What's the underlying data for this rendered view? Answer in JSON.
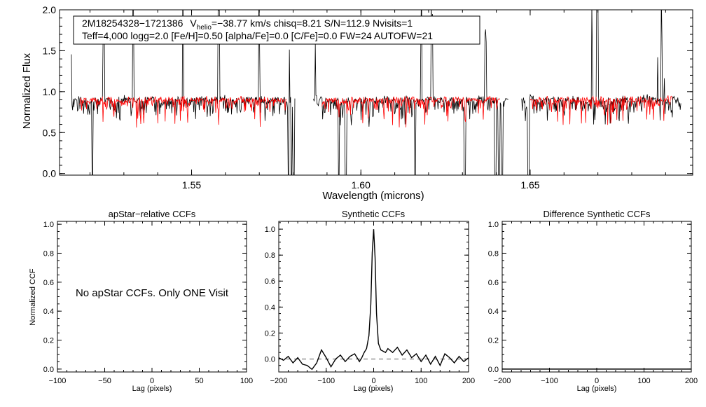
{
  "colors": {
    "observed": "#000000",
    "model": "#ff0000",
    "axis": "#000000",
    "zero_line": "#555555"
  },
  "spectrum": {
    "title_line1_star": "2M18254328−1721386",
    "title_line1_v": "V",
    "title_line1_sub": "helio",
    "title_line1_rest": "=−38.77 km/s  chisq=8.21  S/N=112.9  Nvisits=1",
    "title_line2": "Teff=4,000 logg=2.0 [Fe/H]=0.50 [alpha/Fe]=0.0 [C/Fe]=0.0 FW=24 AUTOFW=21"
  },
  "panels": {
    "no_ccf_message": "No apStar CCFs.  Only ONE Visit"
  },
  "chart_data": [
    {
      "type": "line",
      "id": "spectrum",
      "xlabel": "Wavelength (microns)",
      "ylabel": "Normalized Flux",
      "xlim": [
        1.511,
        1.698
      ],
      "ylim": [
        -0.02,
        2.0
      ],
      "xticks": [
        1.55,
        1.6,
        1.65
      ],
      "xtick_labels": [
        "1.55",
        "1.60",
        "1.65"
      ],
      "yticks": [
        0.0,
        0.5,
        1.0,
        1.5,
        2.0
      ],
      "ytick_labels": [
        "0.0",
        "0.5",
        "1.0",
        "1.5",
        "2.0"
      ],
      "chips": [
        [
          1.5145,
          1.5805
        ],
        [
          1.586,
          1.6435
        ],
        [
          1.6475,
          1.6945
        ]
      ],
      "continuum": 0.93,
      "series": [
        {
          "name": "observed spectrum",
          "color": "#000000"
        },
        {
          "name": "model spectrum",
          "color": "#ff0000"
        }
      ],
      "deep_absorption": [
        1.5207,
        1.5787,
        1.5795,
        1.5802,
        1.5935,
        1.5955,
        1.616,
        1.6307,
        1.6397,
        1.6408,
        1.6417,
        1.6495
      ],
      "emission_spikes": [
        1.524,
        1.5328,
        1.5475,
        1.558,
        1.57,
        1.6178,
        1.621,
        1.6368,
        1.6683,
        1.6698,
        1.6888
      ]
    },
    {
      "type": "line",
      "id": "apstar_ccf",
      "title": "apStar−relative CCFs",
      "xlabel": "Lag (pixels)",
      "ylabel": "Normalized CCF",
      "xlim": [
        -100,
        100
      ],
      "ylim": [
        -0.02,
        1.02
      ],
      "xticks": [
        -100,
        -50,
        0,
        50,
        100
      ],
      "xtick_labels": [
        "−100",
        "−50",
        "0",
        "50",
        "100"
      ],
      "yticks": [
        0.0,
        0.2,
        0.4,
        0.6,
        0.8,
        1.0
      ],
      "ytick_labels": [
        "0.0",
        "0.2",
        "0.4",
        "0.6",
        "0.8",
        "1.0"
      ],
      "series": []
    },
    {
      "type": "line",
      "id": "synthetic_ccf",
      "title": "Synthetic CCFs",
      "xlabel": "Lag (pixels)",
      "xlim": [
        -200,
        200
      ],
      "ylim": [
        -0.1,
        1.06
      ],
      "xticks": [
        -200,
        -100,
        0,
        100,
        200
      ],
      "xtick_labels": [
        "−200",
        "−100",
        "0",
        "100",
        "200"
      ],
      "yticks": [
        0.0,
        0.2,
        0.4,
        0.6,
        0.8,
        1.0
      ],
      "ytick_labels": [
        "0.0",
        "0.2",
        "0.4",
        "0.6",
        "0.8",
        "1.0"
      ],
      "zero_line": 0.0,
      "series": [
        {
          "name": "synthetic CCF",
          "x": [
            -200,
            -190,
            -180,
            -170,
            -160,
            -150,
            -140,
            -130,
            -120,
            -110,
            -100,
            -90,
            -80,
            -70,
            -60,
            -50,
            -40,
            -30,
            -25,
            -20,
            -15,
            -10,
            -6,
            -3,
            0,
            3,
            6,
            10,
            15,
            20,
            25,
            30,
            40,
            50,
            60,
            70,
            80,
            90,
            100,
            110,
            120,
            130,
            140,
            150,
            160,
            170,
            180,
            190,
            200
          ],
          "y": [
            0.01,
            -0.01,
            0.02,
            -0.03,
            0.01,
            -0.04,
            -0.05,
            -0.08,
            -0.03,
            0.07,
            0.01,
            -0.06,
            0.0,
            0.03,
            -0.02,
            0.02,
            0.04,
            -0.02,
            0.01,
            0.05,
            0.08,
            0.18,
            0.42,
            0.82,
            1.0,
            0.78,
            0.35,
            0.12,
            0.07,
            0.06,
            0.05,
            0.08,
            0.05,
            0.09,
            0.03,
            0.07,
            0.01,
            0.04,
            -0.02,
            0.03,
            -0.04,
            0.02,
            -0.05,
            0.04,
            0.01,
            -0.03,
            0.02,
            -0.02,
            0.01
          ]
        }
      ]
    },
    {
      "type": "line",
      "id": "difference_ccf",
      "title": "Difference Synthetic CCFs",
      "xlabel": "Lag (pixels)",
      "xlim": [
        -200,
        200
      ],
      "ylim": [
        -0.02,
        1.02
      ],
      "xticks": [
        -200,
        -100,
        0,
        100,
        200
      ],
      "xtick_labels": [
        "−200",
        "−100",
        "0",
        "100",
        "200"
      ],
      "yticks": [
        0.0,
        0.2,
        0.4,
        0.6,
        0.8,
        1.0
      ],
      "ytick_labels": [
        "0.0",
        "0.2",
        "0.4",
        "0.6",
        "0.8",
        "1.0"
      ],
      "series": [
        {
          "name": "difference CCF",
          "x": [
            -200,
            200
          ],
          "y": [
            0.0,
            0.0
          ]
        }
      ]
    }
  ]
}
